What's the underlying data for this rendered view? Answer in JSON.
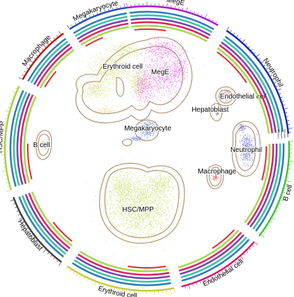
{
  "chart_data": {
    "type": "scatter",
    "title": "",
    "clusters": [
      {
        "name": "Erythroid cell",
        "color": "#c9d255",
        "n": 2200
      },
      {
        "name": "MegE",
        "color": "#d23bd2",
        "n": 2000
      },
      {
        "name": "Megakaryocyte",
        "color": "#2d56c9",
        "n": 500
      },
      {
        "name": "Endothelial cell",
        "color": "#d81b57",
        "n": 140
      },
      {
        "name": "Hepatoblast",
        "color": "#4a4a4a",
        "n": 50
      },
      {
        "name": "Neutrophil",
        "color": "#1f2ab9",
        "n": 500
      },
      {
        "name": "Macrophage",
        "color": "#c81d1d",
        "n": 80
      },
      {
        "name": "B cell",
        "color": "#55d23a",
        "n": 130
      },
      {
        "name": "HSC/MPP",
        "color": "#b3cf2c",
        "n": 3200
      }
    ],
    "ring_sectors": [
      {
        "name": "MegE",
        "color": "#a21ec8"
      },
      {
        "name": "Neutrophil",
        "color": "#1b2bb0"
      },
      {
        "name": "B cell",
        "color": "#46c234"
      },
      {
        "name": "Endothelial cell",
        "color": "#d11c6f"
      },
      {
        "name": "Erythroid cell",
        "color": "#c7cc3a"
      },
      {
        "name": "Hepatoblast",
        "color": "#3d3d3d"
      },
      {
        "name": "HSC/MPP",
        "color": "#a8d040"
      },
      {
        "name": "Macrophage",
        "color": "#b01a1a"
      },
      {
        "name": "Megakaryocyte",
        "color": "#2b4dbf"
      }
    ],
    "track_legend": [
      "Cluster",
      "Gender",
      "Sample",
      "Markers"
    ],
    "track_colors": [
      "#2d7fb8",
      "#3bc3a5",
      "#7b3fb8",
      "#e0245e",
      "#a6d854"
    ]
  }
}
